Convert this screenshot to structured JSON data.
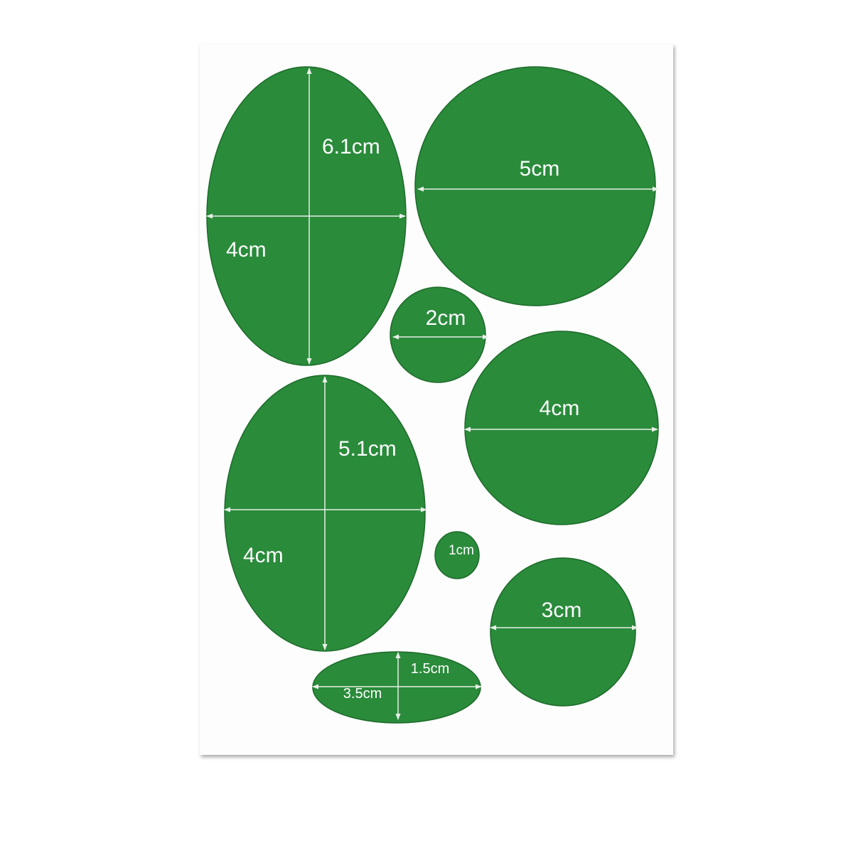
{
  "colors": {
    "patch": "#2a8b3b",
    "patch_edge": "#1d6a2a",
    "arrow": "#e8efe8",
    "label": "#ffffff",
    "sheet": "#fdfdfd"
  },
  "patches": [
    {
      "name": "large-oval",
      "labels": {
        "height": "6.1cm",
        "width": "4cm"
      }
    },
    {
      "name": "large-circle",
      "labels": {
        "diameter": "5cm"
      }
    },
    {
      "name": "small-circle",
      "labels": {
        "diameter": "2cm"
      }
    },
    {
      "name": "medium-circle",
      "labels": {
        "diameter": "4cm"
      }
    },
    {
      "name": "medium-oval",
      "labels": {
        "height": "5.1cm",
        "width": "4cm"
      }
    },
    {
      "name": "tiny-circle",
      "labels": {
        "diameter": "1cm"
      }
    },
    {
      "name": "small-medium-circle",
      "labels": {
        "diameter": "3cm"
      }
    },
    {
      "name": "flat-oval",
      "labels": {
        "height": "1.5cm",
        "width": "3.5cm"
      }
    }
  ]
}
